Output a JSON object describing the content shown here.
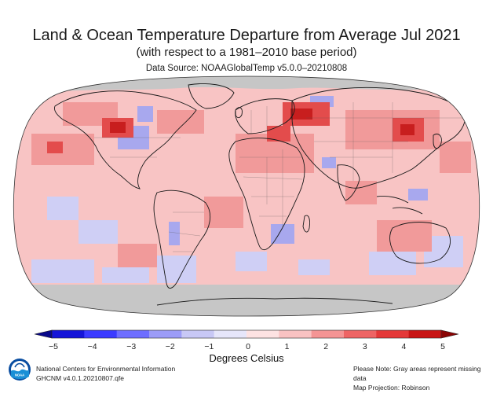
{
  "title": "Land & Ocean Temperature Departure from Average Jul 2021",
  "subtitle": "(with respect to a 1981–2010 base period)",
  "data_source": "Data Source: NOAAGlobalTemp v5.0.0–20210808",
  "colorbar": {
    "ticks": [
      "−5",
      "−4",
      "−3",
      "−2",
      "−1",
      "0",
      "1",
      "2",
      "3",
      "4",
      "5"
    ],
    "units": "Degrees Celsius",
    "range": [
      -5,
      5
    ],
    "colors": [
      "#08088a",
      "#1515d8",
      "#3b3bff",
      "#6e6eff",
      "#9c9cf7",
      "#c8c8f5",
      "#e6e6fa",
      "#fde2e2",
      "#f9c2c2",
      "#f49494",
      "#ee6464",
      "#e43838",
      "#c81414",
      "#8a0404"
    ]
  },
  "footer": {
    "org": "National Centers for Environmental Information",
    "dataset": "GHCNM v4.0.1.20210807.qfe",
    "note": "Please Note: Gray areas represent missing data",
    "projection": "Map Projection: Robinson"
  },
  "logo_text": "NOAA",
  "colors": {
    "ocean_base": "#f8c6c6",
    "missing": "#c8c8c8",
    "warm": "#e04848",
    "cool": "#8c8ce8"
  }
}
